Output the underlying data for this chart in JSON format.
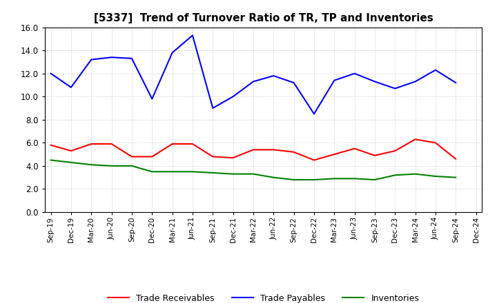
{
  "title": "[5337]  Trend of Turnover Ratio of TR, TP and Inventories",
  "x_labels": [
    "Sep-19",
    "Dec-19",
    "Mar-20",
    "Jun-20",
    "Sep-20",
    "Dec-20",
    "Mar-21",
    "Jun-21",
    "Sep-21",
    "Dec-21",
    "Mar-22",
    "Jun-22",
    "Sep-22",
    "Dec-22",
    "Mar-23",
    "Jun-23",
    "Sep-23",
    "Dec-23",
    "Mar-24",
    "Jun-24",
    "Sep-24",
    "Dec-24"
  ],
  "trade_receivables": [
    5.8,
    5.3,
    5.9,
    5.9,
    4.8,
    4.8,
    5.9,
    5.9,
    4.8,
    4.7,
    5.4,
    5.4,
    5.2,
    4.5,
    5.0,
    5.5,
    4.9,
    5.3,
    6.3,
    6.0,
    4.6,
    null
  ],
  "trade_payables": [
    12.0,
    10.8,
    13.2,
    13.4,
    13.3,
    9.8,
    13.8,
    15.3,
    9.0,
    10.0,
    11.3,
    11.8,
    11.2,
    8.5,
    11.4,
    12.0,
    11.3,
    10.7,
    11.3,
    12.3,
    11.2,
    null
  ],
  "inventories": [
    4.5,
    4.3,
    4.1,
    4.0,
    4.0,
    3.5,
    3.5,
    3.5,
    3.4,
    3.3,
    3.3,
    3.0,
    2.8,
    2.8,
    2.9,
    2.9,
    2.8,
    3.2,
    3.3,
    3.1,
    3.0,
    null
  ],
  "ylim": [
    0.0,
    16.0
  ],
  "yticks": [
    0.0,
    2.0,
    4.0,
    6.0,
    8.0,
    10.0,
    12.0,
    14.0,
    16.0
  ],
  "line_color_tr": "#ff0000",
  "line_color_tp": "#0000ff",
  "line_color_inv": "#008000",
  "legend_labels": [
    "Trade Receivables",
    "Trade Payables",
    "Inventories"
  ],
  "background_color": "#ffffff",
  "grid_color": "#aaaaaa"
}
